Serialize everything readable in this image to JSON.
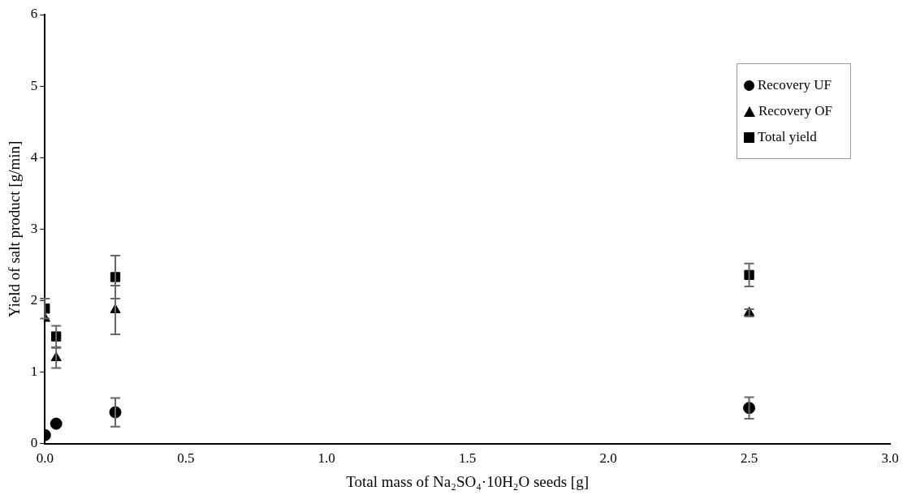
{
  "chart_data": {
    "type": "scatter",
    "xlabel": "Total mass of Na₂SO₄·10H₂O seeds [g]",
    "ylabel": "Yield of salt product [g/min]",
    "x": [
      0,
      0.04,
      0.25,
      2.5
    ],
    "series": [
      {
        "name": "Recovery UF",
        "color": "#000000",
        "marker": "circle",
        "values": [
          0.12,
          0.28,
          0.44,
          0.5
        ],
        "errors": [
          null,
          null,
          0.2,
          0.15
        ]
      },
      {
        "name": "Recovery OF",
        "color": "#000000",
        "marker": "triangle",
        "values": [
          1.75,
          1.2,
          1.87,
          1.83
        ],
        "errors": [
          null,
          0.14,
          0.34,
          0.05
        ]
      },
      {
        "name": "Total yield",
        "color": "#000000",
        "marker": "square",
        "values": [
          1.89,
          1.5,
          2.33,
          2.36
        ],
        "errors": [
          0.14,
          0.15,
          0.3,
          0.16
        ]
      }
    ],
    "xlim": [
      0,
      3
    ],
    "xticks": [
      {
        "value": 0,
        "label": "0.0"
      },
      {
        "value": 0.5,
        "label": "0.5"
      },
      {
        "value": 1,
        "label": "1.0"
      },
      {
        "value": 1.5,
        "label": "1.5"
      },
      {
        "value": 2,
        "label": "2.0"
      },
      {
        "value": 2.5,
        "label": "2.5"
      },
      {
        "value": 3,
        "label": "3.0"
      }
    ],
    "ylim": [
      0,
      6
    ],
    "yticks": [
      0,
      1,
      2,
      3,
      4,
      5,
      6
    ],
    "grid": false,
    "legend": "top right"
  }
}
